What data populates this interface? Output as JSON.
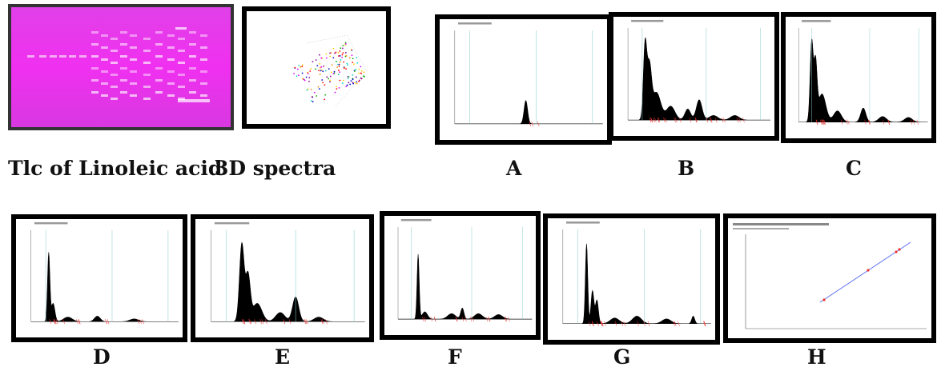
{
  "labels": {
    "tlc": "Tlc of Linoleic acid",
    "spectra": "3D spectra",
    "a": "A",
    "b": "B",
    "c": "C",
    "d": "D",
    "e": "E",
    "f": "F",
    "g": "G",
    "h": "H"
  }
}
